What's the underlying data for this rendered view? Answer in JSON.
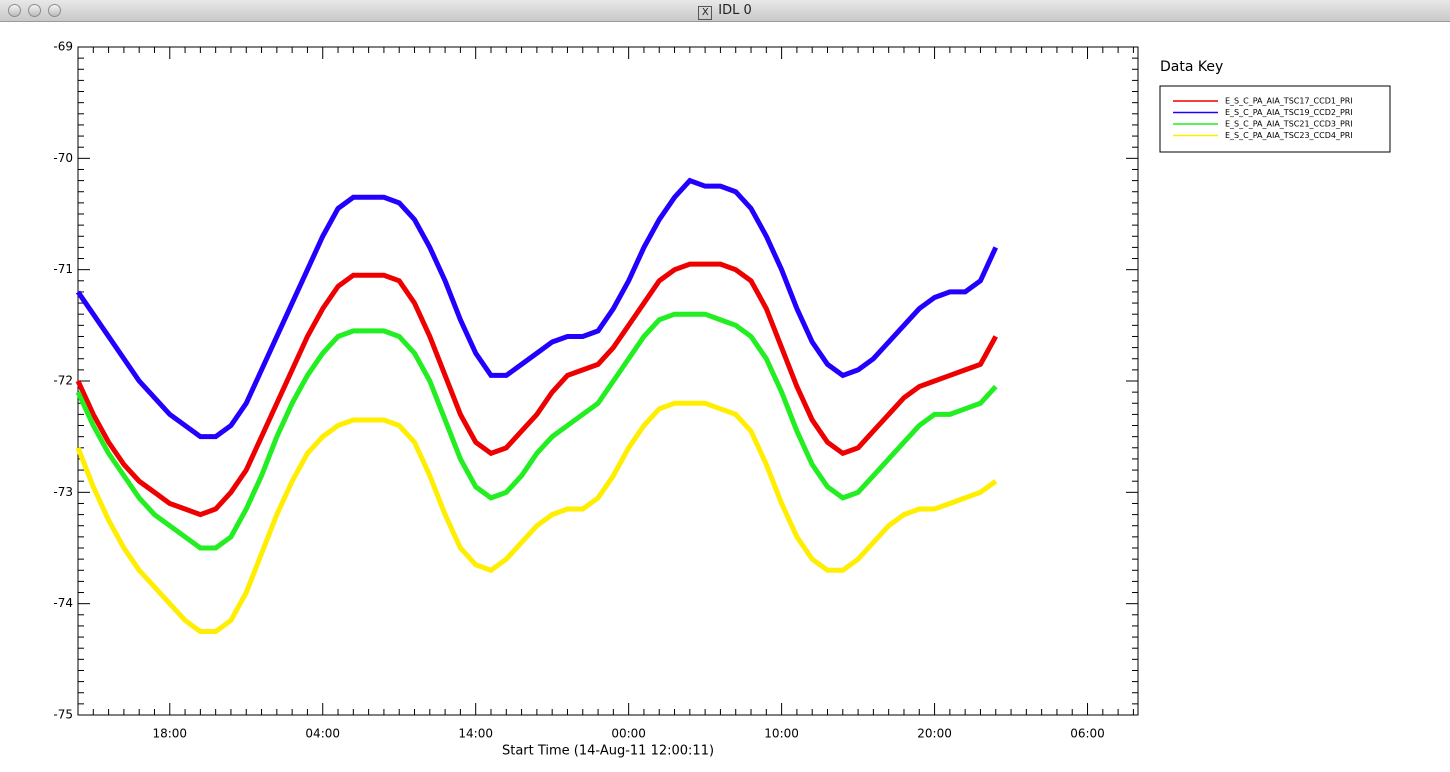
{
  "window": {
    "title": "IDL 0"
  },
  "chart_data": {
    "type": "line",
    "xlabel": "Start Time (14-Aug-11 12:00:11)",
    "legend_title": "Data Key",
    "legend_position": "outside-right",
    "x": [
      0,
      1,
      2,
      3,
      4,
      5,
      6,
      7,
      8,
      9,
      10,
      11,
      12,
      13,
      14,
      15,
      16,
      17,
      18,
      19,
      20,
      21,
      22,
      23,
      24,
      25,
      26,
      27,
      28,
      29,
      30,
      31,
      32,
      33,
      34,
      35,
      36,
      37,
      38,
      39,
      40,
      41,
      42,
      43,
      44,
      45,
      46,
      47,
      48,
      49,
      50,
      51,
      52,
      53,
      54,
      55,
      56,
      57,
      58,
      59,
      60
    ],
    "xlim": [
      0,
      69.3
    ],
    "xticks": [
      {
        "value": 6,
        "label": "18:00"
      },
      {
        "value": 16,
        "label": "04:00"
      },
      {
        "value": 26,
        "label": "14:00"
      },
      {
        "value": 36,
        "label": "00:00"
      },
      {
        "value": 46,
        "label": "10:00"
      },
      {
        "value": 56,
        "label": "20:00"
      },
      {
        "value": 66,
        "label": "06:00"
      }
    ],
    "ylim": [
      -75,
      -69
    ],
    "yticks": [
      -75,
      -74,
      -73,
      -72,
      -71,
      -70,
      -69
    ],
    "series": [
      {
        "name": "E_S_C_PA_AIA_TSC17_CCD1_PRI",
        "color": "#ee0000",
        "values": [
          -72.0,
          -72.3,
          -72.55,
          -72.75,
          -72.9,
          -73.0,
          -73.1,
          -73.15,
          -73.2,
          -73.15,
          -73.0,
          -72.8,
          -72.5,
          -72.2,
          -71.9,
          -71.6,
          -71.35,
          -71.15,
          -71.05,
          -71.05,
          -71.05,
          -71.1,
          -71.3,
          -71.6,
          -71.95,
          -72.3,
          -72.55,
          -72.65,
          -72.6,
          -72.45,
          -72.3,
          -72.1,
          -71.95,
          -71.9,
          -71.85,
          -71.7,
          -71.5,
          -71.3,
          -71.1,
          -71.0,
          -70.95,
          -70.95,
          -70.95,
          -71.0,
          -71.1,
          -71.35,
          -71.7,
          -72.05,
          -72.35,
          -72.55,
          -72.65,
          -72.6,
          -72.45,
          -72.3,
          -72.15,
          -72.05,
          -72.0,
          -71.95,
          -71.9,
          -71.85,
          -71.6
        ]
      },
      {
        "name": "E_S_C_PA_AIA_TSC19_CCD2_PRI",
        "color": "#2200ff",
        "values": [
          -71.2,
          -71.4,
          -71.6,
          -71.8,
          -72.0,
          -72.15,
          -72.3,
          -72.4,
          -72.5,
          -72.5,
          -72.4,
          -72.2,
          -71.9,
          -71.6,
          -71.3,
          -71.0,
          -70.7,
          -70.45,
          -70.35,
          -70.35,
          -70.35,
          -70.4,
          -70.55,
          -70.8,
          -71.1,
          -71.45,
          -71.75,
          -71.95,
          -71.95,
          -71.85,
          -71.75,
          -71.65,
          -71.6,
          -71.6,
          -71.55,
          -71.35,
          -71.1,
          -70.8,
          -70.55,
          -70.35,
          -70.2,
          -70.25,
          -70.25,
          -70.3,
          -70.45,
          -70.7,
          -71.0,
          -71.35,
          -71.65,
          -71.85,
          -71.95,
          -71.9,
          -71.8,
          -71.65,
          -71.5,
          -71.35,
          -71.25,
          -71.2,
          -71.2,
          -71.1,
          -70.8
        ]
      },
      {
        "name": "E_S_C_PA_AIA_TSC21_CCD3_PRI",
        "color": "#22ee22",
        "values": [
          -72.1,
          -72.4,
          -72.65,
          -72.85,
          -73.05,
          -73.2,
          -73.3,
          -73.4,
          -73.5,
          -73.5,
          -73.4,
          -73.15,
          -72.85,
          -72.5,
          -72.2,
          -71.95,
          -71.75,
          -71.6,
          -71.55,
          -71.55,
          -71.55,
          -71.6,
          -71.75,
          -72.0,
          -72.35,
          -72.7,
          -72.95,
          -73.05,
          -73.0,
          -72.85,
          -72.65,
          -72.5,
          -72.4,
          -72.3,
          -72.2,
          -72.0,
          -71.8,
          -71.6,
          -71.45,
          -71.4,
          -71.4,
          -71.4,
          -71.45,
          -71.5,
          -71.6,
          -71.8,
          -72.1,
          -72.45,
          -72.75,
          -72.95,
          -73.05,
          -73.0,
          -72.85,
          -72.7,
          -72.55,
          -72.4,
          -72.3,
          -72.3,
          -72.25,
          -72.2,
          -72.05
        ]
      },
      {
        "name": "E_S_C_PA_AIA_TSC23_CCD4_PRI",
        "color": "#ffee00",
        "values": [
          -72.6,
          -72.95,
          -73.25,
          -73.5,
          -73.7,
          -73.85,
          -74.0,
          -74.15,
          -74.25,
          -74.25,
          -74.15,
          -73.9,
          -73.55,
          -73.2,
          -72.9,
          -72.65,
          -72.5,
          -72.4,
          -72.35,
          -72.35,
          -72.35,
          -72.4,
          -72.55,
          -72.85,
          -73.2,
          -73.5,
          -73.65,
          -73.7,
          -73.6,
          -73.45,
          -73.3,
          -73.2,
          -73.15,
          -73.15,
          -73.05,
          -72.85,
          -72.6,
          -72.4,
          -72.25,
          -72.2,
          -72.2,
          -72.2,
          -72.25,
          -72.3,
          -72.45,
          -72.75,
          -73.1,
          -73.4,
          -73.6,
          -73.7,
          -73.7,
          -73.6,
          -73.45,
          -73.3,
          -73.2,
          -73.15,
          -73.15,
          -73.1,
          -73.05,
          -73.0,
          -72.9
        ]
      }
    ]
  }
}
